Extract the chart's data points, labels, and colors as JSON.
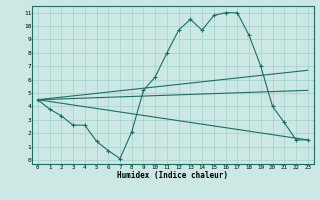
{
  "xlabel": "Humidex (Indice chaleur)",
  "ylabel": "",
  "bg_color": "#cce8e4",
  "grid_color": "#aad4ce",
  "line_color": "#1a6e62",
  "xlim": [
    -0.5,
    23.5
  ],
  "ylim": [
    -0.3,
    11.5
  ],
  "xticks": [
    0,
    1,
    2,
    3,
    4,
    5,
    6,
    7,
    8,
    9,
    10,
    11,
    12,
    13,
    14,
    15,
    16,
    17,
    18,
    19,
    20,
    21,
    22,
    23
  ],
  "yticks": [
    0,
    1,
    2,
    3,
    4,
    5,
    6,
    7,
    8,
    9,
    10,
    11
  ],
  "line1_x": [
    0,
    1,
    2,
    3,
    4,
    5,
    6,
    7,
    8,
    9,
    10,
    11,
    12,
    13,
    14,
    15,
    16,
    17,
    18,
    19,
    20,
    21,
    22,
    23
  ],
  "line1_y": [
    4.5,
    3.8,
    3.3,
    2.6,
    2.6,
    1.4,
    0.7,
    0.1,
    2.1,
    5.2,
    6.2,
    8.0,
    9.7,
    10.5,
    9.7,
    10.8,
    11.0,
    11.0,
    9.3,
    7.0,
    4.0,
    2.8,
    1.5,
    1.5
  ],
  "line2_x": [
    0,
    23
  ],
  "line2_y": [
    4.5,
    6.7
  ],
  "line3_x": [
    0,
    23
  ],
  "line3_y": [
    4.5,
    5.2
  ],
  "line4_x": [
    0,
    23
  ],
  "line4_y": [
    4.5,
    1.5
  ]
}
